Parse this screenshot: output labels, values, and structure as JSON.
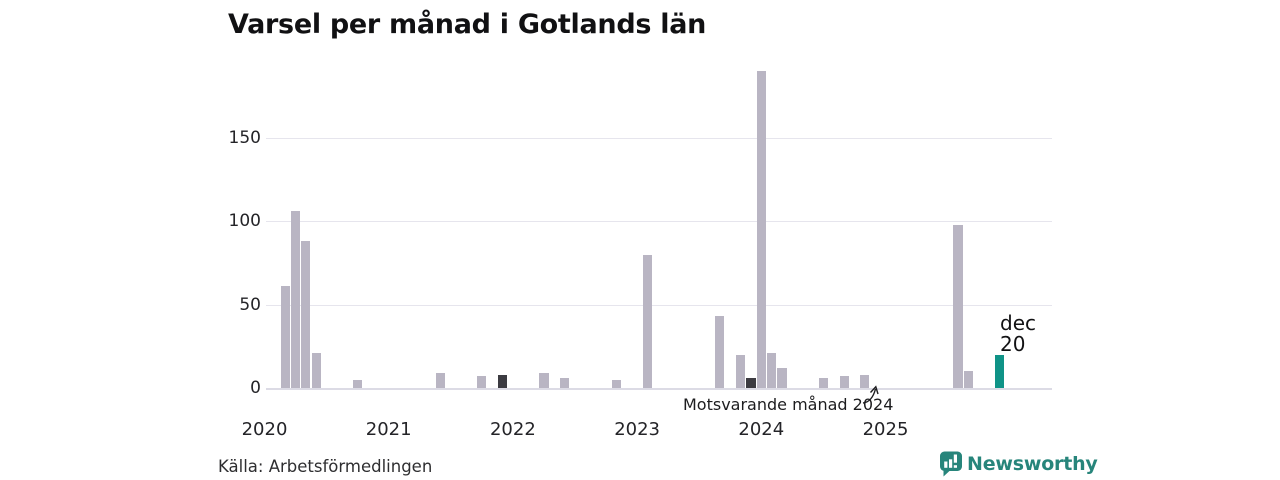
{
  "header": {
    "title": "Varsel per månad i Gotlands län"
  },
  "plot": {
    "annotation_text": "Motsvarande månad 2024",
    "current_label_line1": "dec",
    "current_label_line2": "20"
  },
  "footer": {
    "source": "Källa: Arbetsförmedlingen",
    "logo_text": "Newsworthy"
  },
  "chart_data": {
    "type": "bar",
    "title": "Varsel per månad i Gotlands län",
    "xlabel": "",
    "ylabel": "",
    "x_tick_labels": [
      "2020",
      "2021",
      "2022",
      "2023",
      "2024",
      "2025"
    ],
    "y_ticks": [
      0,
      50,
      100,
      150
    ],
    "ylim": [
      0,
      200
    ],
    "grid": "horizontal",
    "legend": "none",
    "annotation": {
      "text": "Motsvarande månad 2024",
      "target_month": "2024-12",
      "target_value": 0
    },
    "current_point_label": "dec 20",
    "colors": {
      "bar_default": "#b9b5c3",
      "bar_same_month_dark": "#3c3b41",
      "bar_current_teal": "#0f9387",
      "gridline": "#e6e5ed",
      "axis_line": "#dcdbe5",
      "text": "#1a1a1c",
      "logo_teal": "#27857b"
    },
    "points": [
      {
        "month": "2020-03",
        "value": 61,
        "kind": "default"
      },
      {
        "month": "2020-04",
        "value": 106,
        "kind": "default"
      },
      {
        "month": "2020-05",
        "value": 88,
        "kind": "default"
      },
      {
        "month": "2020-06",
        "value": 21,
        "kind": "default"
      },
      {
        "month": "2020-10",
        "value": 5,
        "kind": "default"
      },
      {
        "month": "2021-06",
        "value": 9,
        "kind": "default"
      },
      {
        "month": "2021-10",
        "value": 7,
        "kind": "default"
      },
      {
        "month": "2021-12",
        "value": 8,
        "kind": "dark"
      },
      {
        "month": "2022-04",
        "value": 9,
        "kind": "default"
      },
      {
        "month": "2022-06",
        "value": 6,
        "kind": "default"
      },
      {
        "month": "2022-11",
        "value": 5,
        "kind": "default"
      },
      {
        "month": "2023-02",
        "value": 80,
        "kind": "default"
      },
      {
        "month": "2023-09",
        "value": 43,
        "kind": "default"
      },
      {
        "month": "2023-11",
        "value": 20,
        "kind": "default"
      },
      {
        "month": "2023-12",
        "value": 6,
        "kind": "dark"
      },
      {
        "month": "2024-01",
        "value": 190,
        "kind": "default"
      },
      {
        "month": "2024-02",
        "value": 21,
        "kind": "default"
      },
      {
        "month": "2024-03",
        "value": 12,
        "kind": "default"
      },
      {
        "month": "2024-07",
        "value": 6,
        "kind": "default"
      },
      {
        "month": "2024-09",
        "value": 7,
        "kind": "default"
      },
      {
        "month": "2024-11",
        "value": 8,
        "kind": "default"
      },
      {
        "month": "2024-12",
        "value": 0,
        "kind": "dark"
      },
      {
        "month": "2025-08",
        "value": 98,
        "kind": "default"
      },
      {
        "month": "2025-09",
        "value": 10,
        "kind": "default"
      },
      {
        "month": "2025-12",
        "value": 20,
        "kind": "current"
      }
    ]
  }
}
